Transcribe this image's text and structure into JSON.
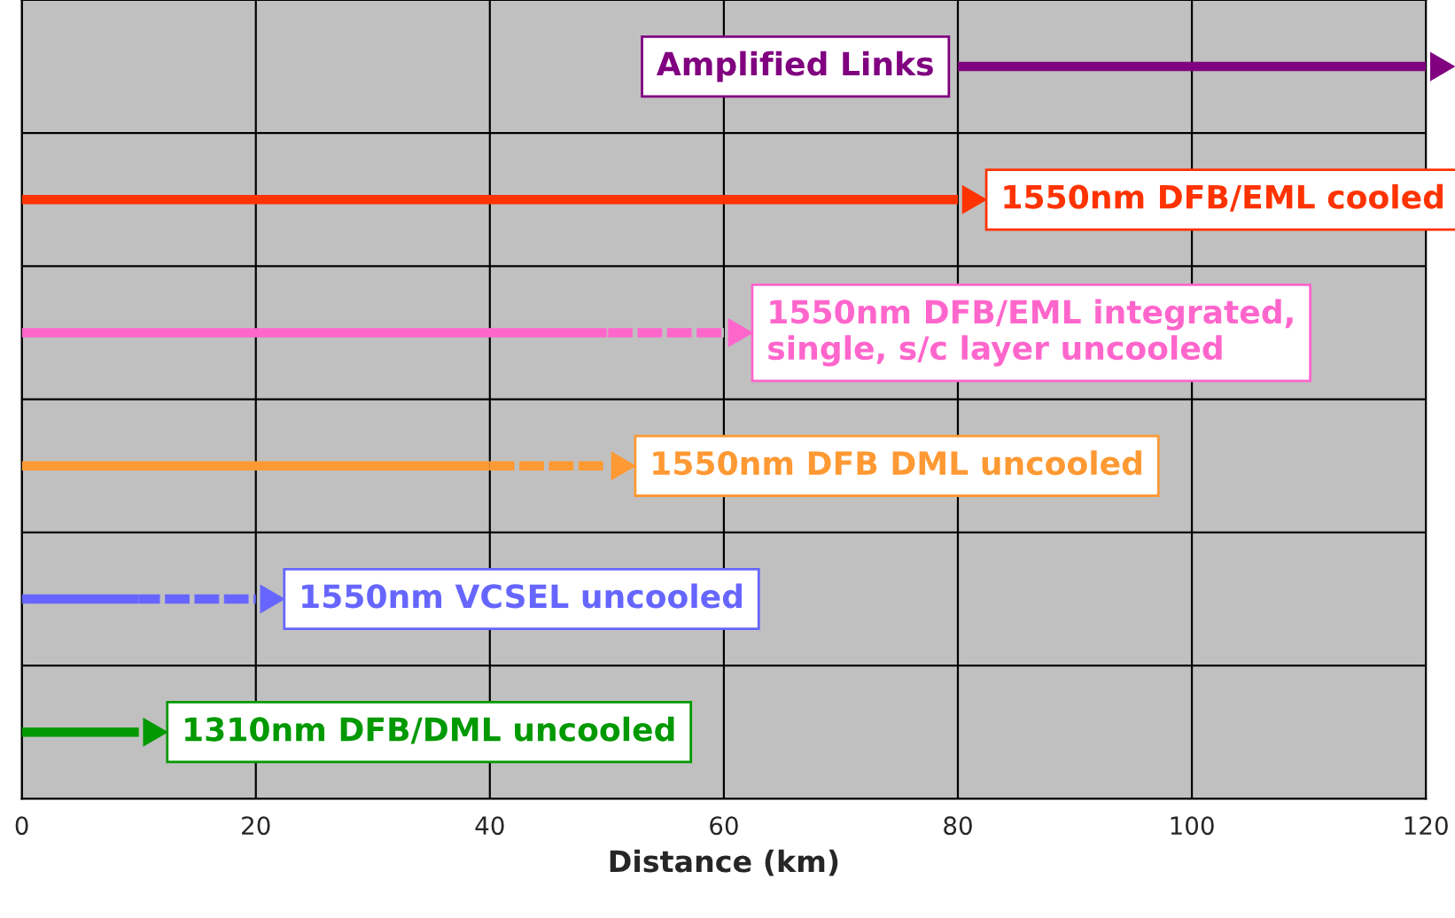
{
  "chart_data": {
    "type": "bar",
    "orientation": "horizontal",
    "categories": [
      "Amplified Links",
      "1550nm DFB/EML cooled",
      "1550nm DFB/EML integrated,\nsingle, s/c layer uncooled",
      "1550nm DFB DML uncooled",
      "1550nm VCSEL uncooled",
      "1310nm DFB/DML uncooled"
    ],
    "series": [
      {
        "colors": [
          "#800080",
          "#ff3300",
          "#ff66cc",
          "#ff9933",
          "#6666ff",
          "#009900"
        ],
        "line_style": "solid",
        "base": [
          80,
          0,
          0,
          0,
          0,
          0
        ],
        "values": [
          40,
          80,
          50,
          40,
          10,
          10
        ]
      },
      {
        "colors": [
          "#800080",
          "#ff3300",
          "#ff66cc",
          "#ff9933",
          "#6666ff",
          "#009900"
        ],
        "line_style": "dotted",
        "base": [
          null,
          null,
          50,
          40,
          10,
          null
        ],
        "values": [
          null,
          null,
          10,
          10,
          10,
          null
        ]
      }
    ],
    "xlabel": "Distance (km)",
    "xlim": [
      0,
      120
    ],
    "xticks": [
      0,
      20,
      40,
      60,
      80,
      100,
      120
    ],
    "tick_labels": "x",
    "grid": true
  }
}
